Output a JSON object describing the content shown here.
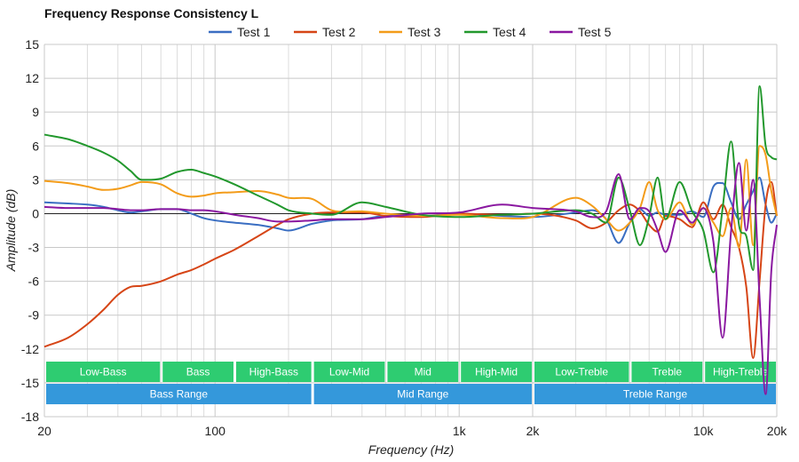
{
  "chart_data": {
    "type": "line",
    "title": "Frequency Response Consistency L",
    "xlabel": "Frequency (Hz)",
    "ylabel": "Amplitude (dB)",
    "xscale": "log",
    "xlim": [
      20,
      20000
    ],
    "ylim": [
      -18,
      15
    ],
    "grid": true,
    "legend_position": "top-center",
    "x_ticks": [
      {
        "value": 20,
        "label": "20"
      },
      {
        "value": 100,
        "label": "100"
      },
      {
        "value": 1000,
        "label": "1k"
      },
      {
        "value": 2000,
        "label": "2k"
      },
      {
        "value": 10000,
        "label": "10k"
      },
      {
        "value": 20000,
        "label": "20k"
      }
    ],
    "y_ticks": [
      {
        "value": 15,
        "label": "15"
      },
      {
        "value": 12,
        "label": "12"
      },
      {
        "value": 9,
        "label": "9"
      },
      {
        "value": 6,
        "label": "6"
      },
      {
        "value": 3,
        "label": "3"
      },
      {
        "value": 0,
        "label": "0"
      },
      {
        "value": -3,
        "label": "-3"
      },
      {
        "value": -6,
        "label": "-6"
      },
      {
        "value": -9,
        "label": "-9"
      },
      {
        "value": -12,
        "label": "-12"
      },
      {
        "value": -15,
        "label": "-15"
      },
      {
        "value": -18,
        "label": "-18"
      }
    ],
    "series": [
      {
        "name": "Test 1",
        "color": "#3a6ec2",
        "x": [
          20,
          25,
          30,
          35,
          40,
          45,
          50,
          60,
          70,
          80,
          90,
          100,
          120,
          150,
          180,
          200,
          250,
          300,
          400,
          500,
          700,
          1000,
          1500,
          2000,
          3000,
          3500,
          4000,
          4500,
          5000,
          5500,
          6000,
          6500,
          7000,
          8000,
          9000,
          10000,
          11000,
          12000,
          13000,
          14000,
          15000,
          16000,
          17000,
          18000,
          19000,
          20000
        ],
        "y": [
          1.0,
          0.9,
          0.8,
          0.6,
          0.3,
          0.1,
          0.2,
          0.4,
          0.4,
          0.0,
          -0.4,
          -0.6,
          -0.8,
          -1.0,
          -1.3,
          -1.5,
          -0.9,
          -0.6,
          -0.5,
          -0.2,
          -0.2,
          0.0,
          -0.2,
          -0.3,
          0.1,
          0.3,
          -0.5,
          -2.6,
          -0.8,
          0.4,
          -0.2,
          0.1,
          -0.1,
          -0.1,
          0.2,
          -0.3,
          2.4,
          2.7,
          1.0,
          -0.5,
          0.8,
          2.0,
          3.2,
          0.8,
          -0.8,
          0.0
        ]
      },
      {
        "name": "Test 2",
        "color": "#d64516",
        "x": [
          20,
          25,
          30,
          35,
          40,
          45,
          50,
          60,
          70,
          80,
          90,
          100,
          120,
          150,
          180,
          200,
          250,
          300,
          400,
          500,
          700,
          1000,
          1500,
          2000,
          3000,
          3500,
          4000,
          4500,
          5000,
          5500,
          6000,
          6500,
          7000,
          8000,
          9000,
          10000,
          11000,
          12000,
          13000,
          14000,
          15000,
          16000,
          17000,
          18000,
          19000,
          20000
        ],
        "y": [
          -11.8,
          -11.0,
          -9.8,
          -8.5,
          -7.2,
          -6.5,
          -6.4,
          -6.0,
          -5.4,
          -5.0,
          -4.5,
          -4.0,
          -3.2,
          -2.0,
          -1.0,
          -0.5,
          0.0,
          0.1,
          0.1,
          -0.2,
          -0.3,
          0.0,
          -0.1,
          0.0,
          -0.6,
          -1.3,
          -0.8,
          0.3,
          0.8,
          0.2,
          -1.0,
          -1.6,
          -0.2,
          -0.5,
          -1.2,
          1.0,
          -0.5,
          0.8,
          -1.2,
          -3.0,
          -6.5,
          -12.8,
          -6.0,
          0.8,
          2.8,
          -0.2
        ]
      },
      {
        "name": "Test 3",
        "color": "#f39c1a",
        "x": [
          20,
          25,
          30,
          35,
          40,
          45,
          50,
          60,
          70,
          80,
          90,
          100,
          120,
          150,
          180,
          200,
          250,
          300,
          400,
          500,
          700,
          1000,
          1500,
          2000,
          3000,
          3500,
          4000,
          4500,
          5000,
          5500,
          6000,
          6500,
          7000,
          8000,
          9000,
          10000,
          11000,
          12000,
          13000,
          14000,
          15000,
          16000,
          17000,
          18000,
          19000,
          20000
        ],
        "y": [
          2.9,
          2.7,
          2.4,
          2.1,
          2.2,
          2.5,
          2.8,
          2.6,
          1.8,
          1.5,
          1.6,
          1.8,
          1.9,
          2.0,
          1.7,
          1.4,
          1.3,
          0.3,
          0.2,
          0.0,
          -0.2,
          -0.1,
          -0.4,
          -0.3,
          1.4,
          0.7,
          -0.5,
          -1.5,
          -0.8,
          0.5,
          2.8,
          0.3,
          -0.5,
          1.0,
          -1.0,
          0.5,
          -0.8,
          -2.0,
          0.5,
          -3.0,
          4.8,
          -2.8,
          6.0,
          5.2,
          2.0,
          -0.2
        ]
      },
      {
        "name": "Test 4",
        "color": "#22982d",
        "x": [
          20,
          25,
          30,
          35,
          40,
          45,
          50,
          60,
          70,
          80,
          90,
          100,
          120,
          150,
          180,
          200,
          250,
          300,
          400,
          500,
          700,
          1000,
          1500,
          2000,
          3000,
          3500,
          4000,
          4500,
          5000,
          5500,
          6000,
          6500,
          7000,
          8000,
          9000,
          10000,
          11000,
          12000,
          13000,
          14000,
          15000,
          16000,
          17000,
          18000,
          19000,
          20000
        ],
        "y": [
          7.0,
          6.6,
          6.0,
          5.4,
          4.7,
          3.8,
          3.0,
          3.1,
          3.7,
          3.9,
          3.6,
          3.3,
          2.6,
          1.6,
          0.8,
          0.3,
          0.0,
          -0.1,
          1.0,
          0.6,
          -0.1,
          -0.3,
          -0.1,
          0.0,
          0.3,
          0.0,
          -0.8,
          3.2,
          0.3,
          -2.8,
          -0.3,
          3.2,
          -0.5,
          2.8,
          0.2,
          -1.5,
          -5.2,
          0.5,
          6.4,
          -1.0,
          -2.0,
          -5.0,
          11.3,
          6.0,
          5.0,
          4.8
        ]
      },
      {
        "name": "Test 5",
        "color": "#8a18a0",
        "x": [
          20,
          25,
          30,
          35,
          40,
          45,
          50,
          60,
          70,
          80,
          90,
          100,
          120,
          150,
          180,
          200,
          250,
          300,
          400,
          500,
          700,
          1000,
          1500,
          2000,
          3000,
          3500,
          4000,
          4500,
          5000,
          5500,
          6000,
          6500,
          7000,
          8000,
          9000,
          10000,
          11000,
          12000,
          13000,
          14000,
          15000,
          16000,
          17000,
          18000,
          19000,
          20000
        ],
        "y": [
          0.6,
          0.5,
          0.5,
          0.5,
          0.4,
          0.3,
          0.3,
          0.4,
          0.4,
          0.3,
          0.3,
          0.2,
          -0.1,
          -0.4,
          -0.7,
          -0.7,
          -0.6,
          -0.5,
          -0.5,
          -0.3,
          0.0,
          0.1,
          0.8,
          0.5,
          0.2,
          -0.3,
          0.2,
          3.5,
          -0.5,
          0.5,
          0.2,
          -1.5,
          -3.4,
          0.3,
          -0.8,
          0.5,
          -2.5,
          -11.0,
          -1.5,
          4.5,
          -1.5,
          3.0,
          -7.5,
          -16.0,
          -5.0,
          -1.0
        ]
      }
    ],
    "bands": {
      "row1": [
        {
          "label": "Low-Bass",
          "from": 20,
          "to": 60
        },
        {
          "label": "Bass",
          "from": 60,
          "to": 120
        },
        {
          "label": "High-Bass",
          "from": 120,
          "to": 250
        },
        {
          "label": "Low-Mid",
          "from": 250,
          "to": 500
        },
        {
          "label": "Mid",
          "from": 500,
          "to": 1000
        },
        {
          "label": "High-Mid",
          "from": 1000,
          "to": 2000
        },
        {
          "label": "Low-Treble",
          "from": 2000,
          "to": 5000
        },
        {
          "label": "Treble",
          "from": 5000,
          "to": 10000
        },
        {
          "label": "High-Treble",
          "from": 10000,
          "to": 20000
        }
      ],
      "row2": [
        {
          "label": "Bass Range",
          "from": 20,
          "to": 250
        },
        {
          "label": "Mid Range",
          "from": 250,
          "to": 2000
        },
        {
          "label": "Treble Range",
          "from": 2000,
          "to": 20000
        }
      ],
      "row1_color": "#2ecc71",
      "row2_color": "#3498db"
    }
  }
}
